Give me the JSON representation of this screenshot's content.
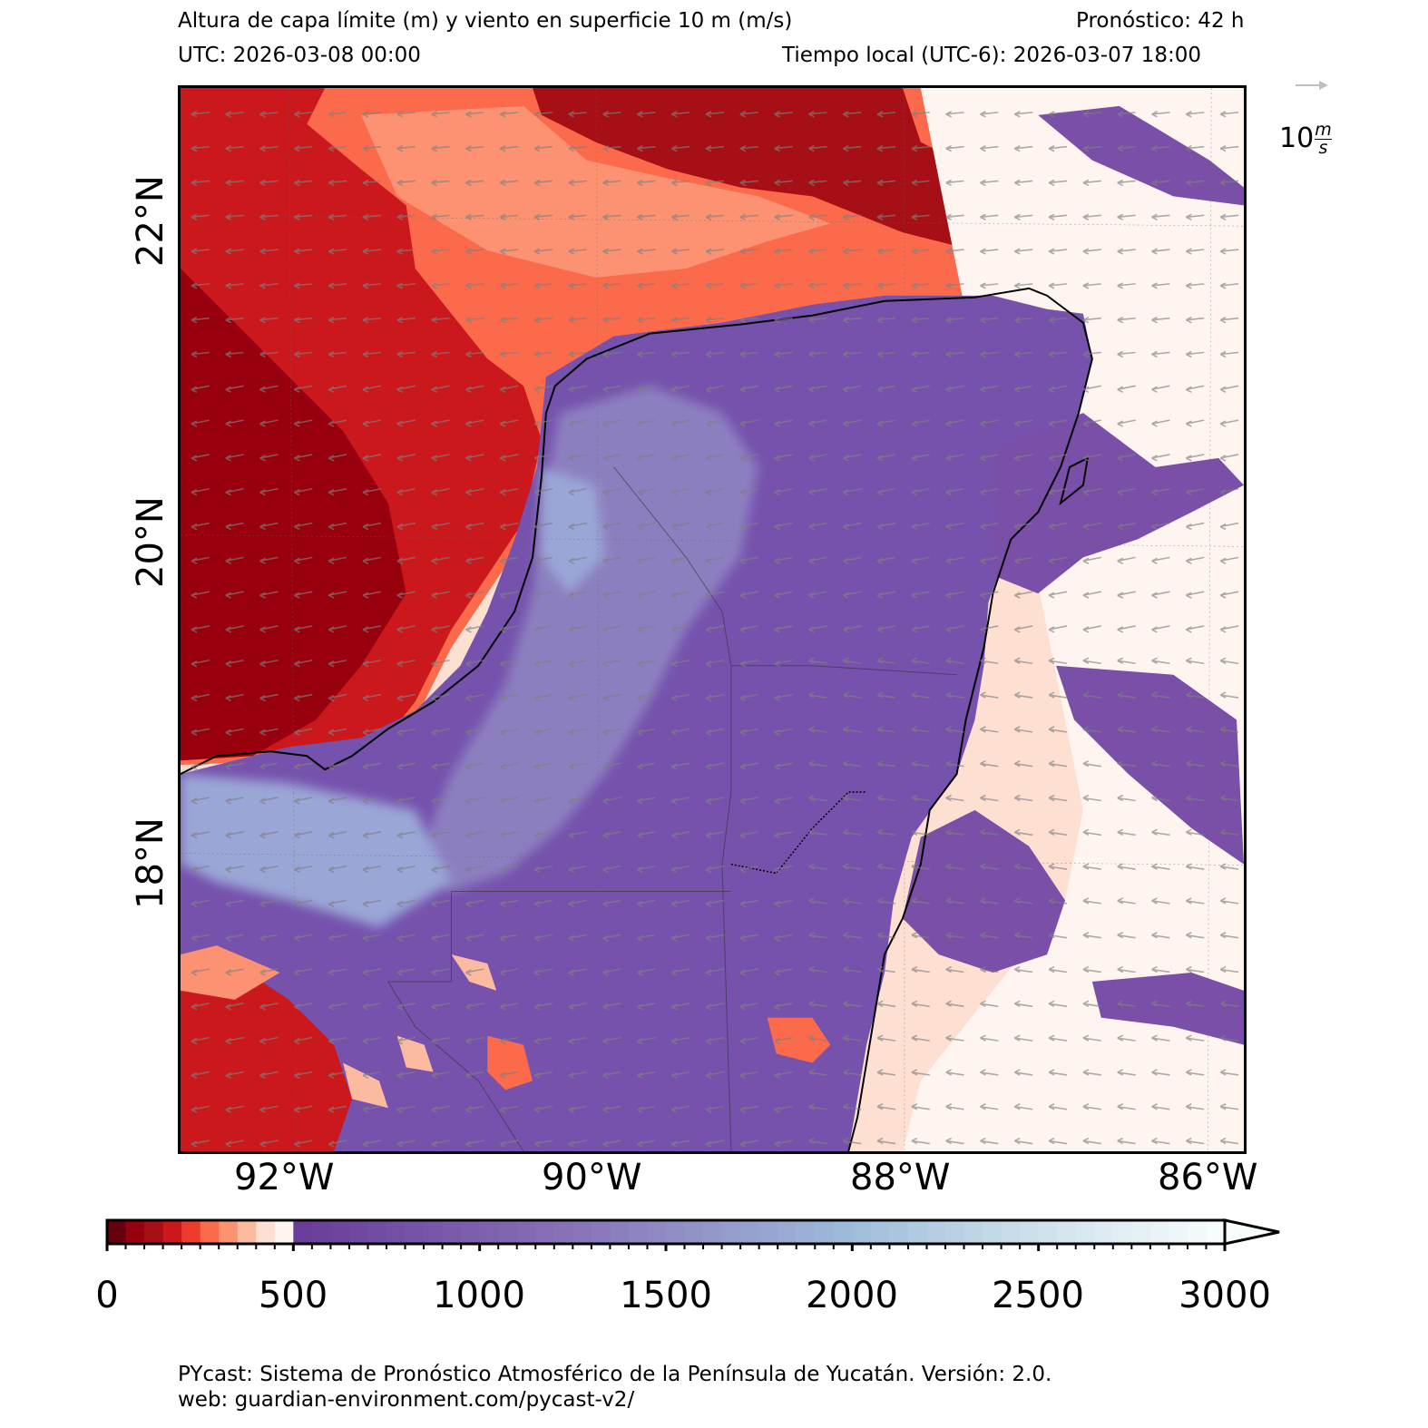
{
  "header": {
    "title": "Altura de capa límite (m) y viento en superficie 10 m (m/s)",
    "forecast": "Pronóstico: 42 h",
    "utc": "UTC:  2026-03-08 00:00",
    "local_time": "Tiempo local (UTC-6): 2026-03-07 18:00"
  },
  "map": {
    "longitude_labels": [
      "92°W",
      "90°W",
      "88°W",
      "86°W"
    ],
    "latitude_labels": [
      "22°N",
      "20°N",
      "18°N"
    ],
    "variable_colors": {
      "very_low": "#67000d",
      "low": "#cb181d",
      "medium_low": "#fb6a4a",
      "transition": "#fcbba1",
      "near_500": "#fff5f0",
      "above_500": "#6a3d9a",
      "mid": "#8c74b8",
      "high": "#9ebcda",
      "max": "#f7fcfd"
    },
    "wind_arrow_color": "#7f7f7f",
    "coastline_color": "#000000"
  },
  "reference_vector": {
    "label_value": "10",
    "label_unit_num": "m",
    "label_unit_den": "s"
  },
  "colorbar": {
    "tick_labels": [
      "0",
      "500",
      "1000",
      "1500",
      "2000",
      "2500",
      "3000"
    ],
    "min": 0,
    "max": 3000,
    "extend": "max"
  },
  "footer": {
    "line1": "PYcast: Sistema de Pronóstico Atmosférico de la Península de Yucatán. Versión: 2.0.",
    "line2": "web: guardian-environment.com/pycast-v2/"
  }
}
